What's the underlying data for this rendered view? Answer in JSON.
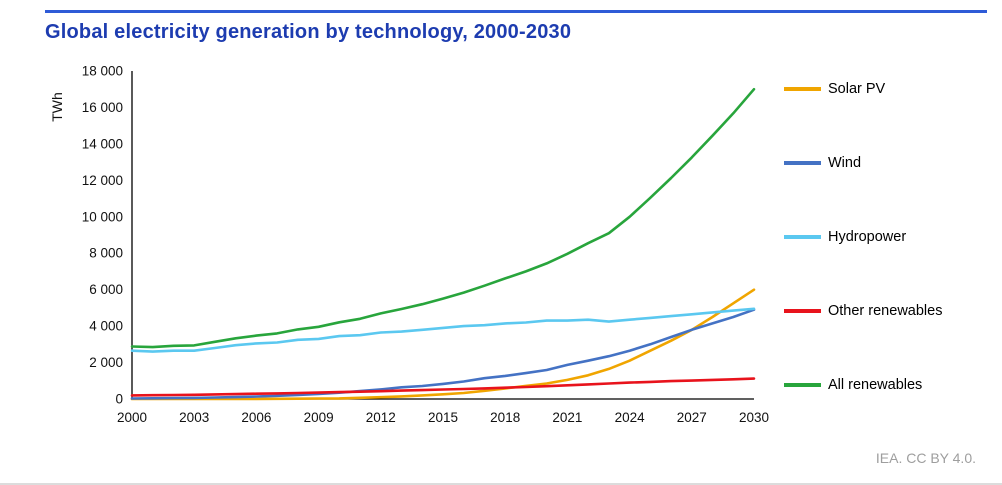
{
  "page": {
    "title": "Global electricity generation by technology, 2000-2030",
    "title_color": "#1d3cb0",
    "rule_color": "#2e5bd7",
    "source": "IEA. CC BY 4.0."
  },
  "chart_data": {
    "type": "line",
    "title": "Global electricity generation by technology, 2000-2030",
    "xlabel": "",
    "ylabel": "TWh",
    "ylim": [
      0,
      18000
    ],
    "grid": false,
    "legend_position": "right",
    "x": [
      2000,
      2001,
      2002,
      2003,
      2004,
      2005,
      2006,
      2007,
      2008,
      2009,
      2010,
      2011,
      2012,
      2013,
      2014,
      2015,
      2016,
      2017,
      2018,
      2019,
      2020,
      2021,
      2022,
      2023,
      2024,
      2025,
      2026,
      2027,
      2028,
      2029,
      2030
    ],
    "x_ticks": [
      2000,
      2003,
      2006,
      2009,
      2012,
      2015,
      2018,
      2021,
      2024,
      2027,
      2030
    ],
    "y_ticks": [
      {
        "value": 0,
        "label": "0"
      },
      {
        "value": 2000,
        "label": "2 000"
      },
      {
        "value": 4000,
        "label": "4 000"
      },
      {
        "value": 6000,
        "label": "6 000"
      },
      {
        "value": 8000,
        "label": "8 000"
      },
      {
        "value": 10000,
        "label": "10 000"
      },
      {
        "value": 12000,
        "label": "12 000"
      },
      {
        "value": 14000,
        "label": "14 000"
      },
      {
        "value": 16000,
        "label": "16 000"
      },
      {
        "value": 18000,
        "label": "18 000"
      }
    ],
    "series": [
      {
        "name": "Solar PV",
        "color": "#f0a500",
        "values": [
          1,
          2,
          2,
          3,
          4,
          5,
          7,
          10,
          15,
          25,
          35,
          65,
          100,
          140,
          200,
          260,
          330,
          450,
          580,
          720,
          850,
          1050,
          1300,
          1650,
          2100,
          2650,
          3200,
          3800,
          4500,
          5250,
          6000
        ]
      },
      {
        "name": "Wind",
        "color": "#4472c4",
        "values": [
          30,
          40,
          50,
          60,
          85,
          105,
          135,
          175,
          220,
          280,
          345,
          435,
          525,
          640,
          715,
          830,
          960,
          1140,
          1270,
          1420,
          1590,
          1870,
          2100,
          2350,
          2650,
          3000,
          3400,
          3800,
          4150,
          4500,
          4900
        ]
      },
      {
        "name": "Hydropower",
        "color": "#5bc8f0",
        "values": [
          2650,
          2600,
          2650,
          2650,
          2800,
          2950,
          3050,
          3100,
          3250,
          3300,
          3450,
          3500,
          3650,
          3700,
          3800,
          3900,
          4000,
          4050,
          4150,
          4200,
          4300,
          4300,
          4350,
          4250,
          4350,
          4450,
          4550,
          4650,
          4750,
          4850,
          4950
        ]
      },
      {
        "name": "Other renewables",
        "color": "#e8131c",
        "values": [
          200,
          210,
          220,
          230,
          250,
          270,
          290,
          310,
          330,
          350,
          380,
          400,
          430,
          460,
          490,
          520,
          550,
          580,
          620,
          660,
          700,
          750,
          800,
          850,
          900,
          940,
          980,
          1010,
          1050,
          1080,
          1120
        ]
      },
      {
        "name": "All renewables",
        "color": "#28a53c",
        "values": [
          2880,
          2850,
          2920,
          2940,
          3140,
          3330,
          3480,
          3600,
          3820,
          3960,
          4210,
          4400,
          4700,
          4940,
          5200,
          5510,
          5840,
          6220,
          6620,
          7000,
          7440,
          7970,
          8550,
          9100,
          10000,
          11040,
          12130,
          13260,
          14450,
          15680,
          17000
        ]
      }
    ]
  }
}
